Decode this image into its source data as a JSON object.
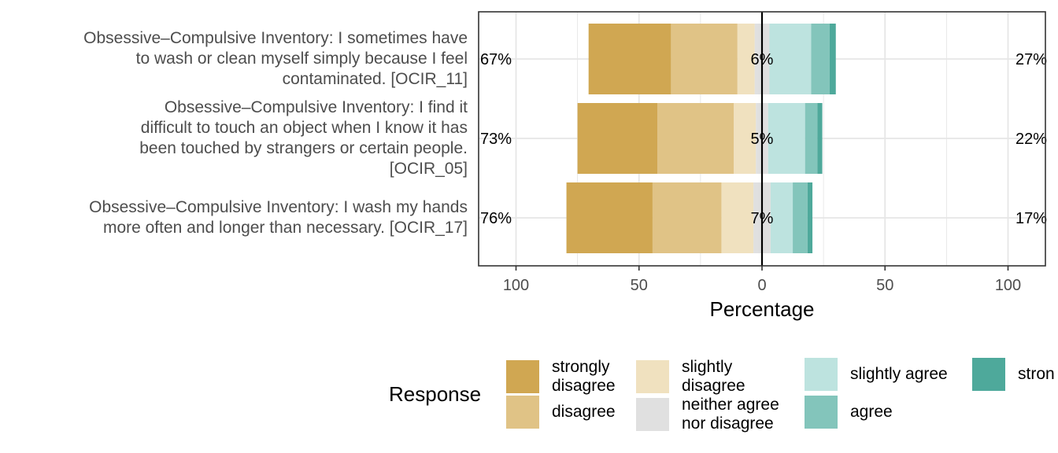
{
  "chart_data": {
    "type": "bar",
    "subtype": "diverging-stacked-likert",
    "xlabel": "Percentage",
    "xlim": [
      -100,
      100
    ],
    "x_ticks": [
      "100",
      "50",
      "0",
      "50",
      "100"
    ],
    "grid": true,
    "legend_title": "Response",
    "legend_position": "bottom",
    "categories": [
      "Obsessive–Compulsive Inventory: I sometimes have\nto wash or clean myself simply because I feel\ncontaminated. [OCIR_11]",
      "Obsessive–Compulsive Inventory: I find it\ndifficult to touch an object when I know it has\nbeen touched by strangers or certain people.\n[OCIR_05]",
      "Obsessive–Compulsive Inventory: I wash my hands\nmore often and longer than necessary. [OCIR_17]"
    ],
    "series": [
      {
        "name": "strongly disagree",
        "label": "strongly\ndisagree",
        "color": "#d0a752",
        "values": [
          33.5,
          32.5,
          35
        ]
      },
      {
        "name": "disagree",
        "label": "disagree",
        "color": "#e0c386",
        "values": [
          27,
          31,
          28
        ]
      },
      {
        "name": "slightly disagree",
        "label": "slightly\ndisagree",
        "color": "#f0e1bf",
        "values": [
          7,
          9,
          13
        ]
      },
      {
        "name": "neither agree nor disagree",
        "label": "neither agree\nnor disagree",
        "color": "#e0e0e0",
        "values": [
          6,
          5,
          7
        ]
      },
      {
        "name": "slightly agree",
        "label": "slightly agree",
        "color": "#bde3df",
        "values": [
          17,
          15,
          9
        ]
      },
      {
        "name": "agree",
        "label": "agree",
        "color": "#83c5bb",
        "values": [
          7.5,
          5,
          6
        ]
      },
      {
        "name": "strongly agree",
        "label": "stron",
        "color": "#4ea99b",
        "values": [
          2.5,
          2,
          2
        ]
      }
    ],
    "left_labels": [
      "67%",
      "73%",
      "76%"
    ],
    "center_labels": [
      "6%",
      "5%",
      "7%"
    ],
    "right_labels": [
      "27%",
      "22%",
      "17%"
    ]
  }
}
